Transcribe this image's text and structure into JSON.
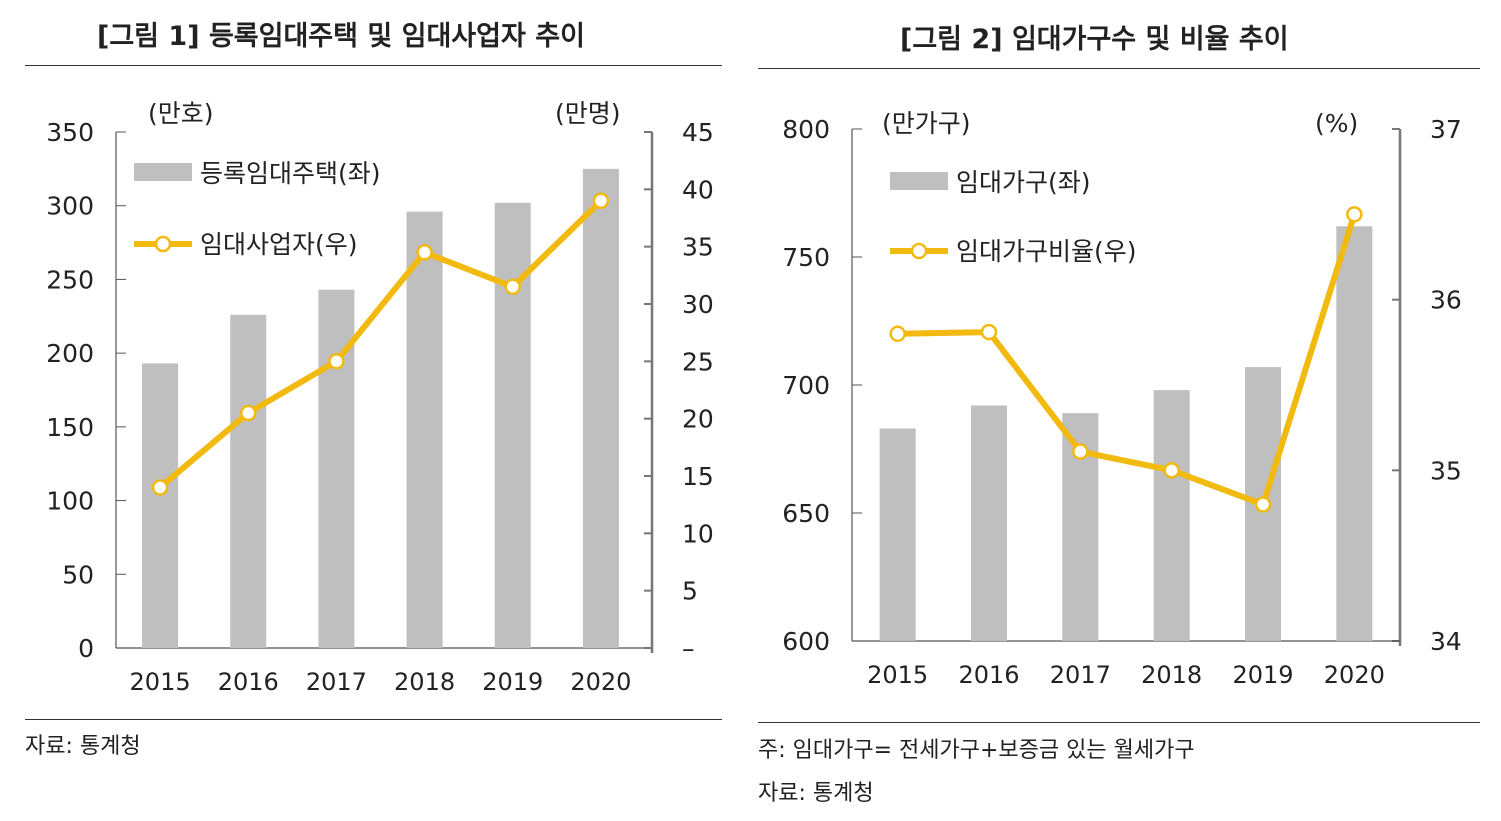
{
  "colors": {
    "bar": "#bfbfbf",
    "line": "#f2b90f",
    "axis": "#555555",
    "marker_fill": "#ffffff"
  },
  "figure1": {
    "title": "[그림 1] 등록임대주택 및 임대사업자 추이",
    "source": "자료: 통계청"
  },
  "figure2": {
    "title": "[그림 2] 임대가구수 및 비율 추이",
    "note": "주: 임대가구= 전세가구+보증금 있는 월세가구",
    "source": "자료: 통계청"
  },
  "chart_data": [
    {
      "type": "bar+line",
      "categories": [
        "2015",
        "2016",
        "2017",
        "2018",
        "2019",
        "2020"
      ],
      "series": [
        {
          "name": "등록임대주택(좌)",
          "type": "bar",
          "axis": "left",
          "values": [
            193,
            226,
            243,
            296,
            302,
            325
          ]
        },
        {
          "name": "임대사업자(우)",
          "type": "line",
          "axis": "right",
          "values": [
            14,
            20.5,
            25,
            34.5,
            31.5,
            39
          ]
        }
      ],
      "left_axis": {
        "unit": "(만호)",
        "ylim": [
          0,
          350
        ],
        "ticks": [
          "0",
          "50",
          "100",
          "150",
          "200",
          "250",
          "300",
          "350"
        ]
      },
      "right_axis": {
        "unit": "(만명)",
        "ylim": [
          0,
          45
        ],
        "ticks": [
          "–",
          "5",
          "10",
          "15",
          "20",
          "25",
          "30",
          "35",
          "40",
          "45"
        ]
      },
      "legend": "top-left"
    },
    {
      "type": "bar+line",
      "categories": [
        "2015",
        "2016",
        "2017",
        "2018",
        "2019",
        "2020"
      ],
      "series": [
        {
          "name": "임대가구(좌)",
          "type": "bar",
          "axis": "left",
          "values": [
            683,
            692,
            689,
            698,
            707,
            762
          ]
        },
        {
          "name": "임대가구비율(우)",
          "type": "line",
          "axis": "right",
          "values": [
            35.8,
            35.81,
            35.11,
            35.0,
            34.8,
            36.5
          ]
        }
      ],
      "left_axis": {
        "unit": "(만가구)",
        "ylim": [
          600,
          800
        ],
        "ticks": [
          "600",
          "650",
          "700",
          "750",
          "800"
        ]
      },
      "right_axis": {
        "unit": "(%)",
        "ylim": [
          34,
          37
        ],
        "ticks": [
          "34",
          "35",
          "36",
          "37"
        ]
      },
      "legend": "top-left"
    }
  ]
}
